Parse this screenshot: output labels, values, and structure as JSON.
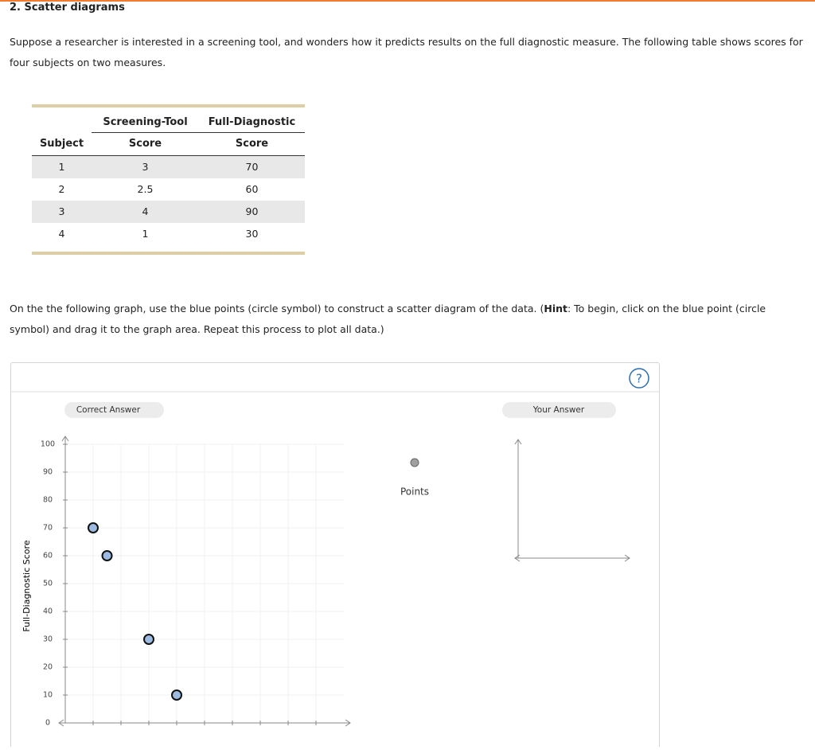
{
  "header": {
    "title": "2. Scatter diagrams"
  },
  "intro": "Suppose a researcher is interested in a screening tool, and wonders how it predicts results on the full diagnostic measure. The following table shows scores for four subjects on two measures.",
  "table": {
    "group_headers": [
      "Screening-Tool",
      "Full-Diagnostic"
    ],
    "columns": [
      "Subject",
      "Score",
      "Score"
    ],
    "rows": [
      [
        1,
        3,
        70
      ],
      [
        2,
        2.5,
        60
      ],
      [
        3,
        4,
        90
      ],
      [
        4,
        1,
        30
      ]
    ]
  },
  "instruction": [
    "On the the following graph, use the blue points (circle symbol) to construct a scatter diagram of the data. (",
    "Hint",
    ": To begin, click on the blue point (circle symbol) and drag it to the graph area. Repeat this process to plot all data.)"
  ],
  "tool": {
    "correct_tab": "Correct Answer",
    "your_tab": "Your Answer",
    "help": "?"
  },
  "chart_data": {
    "type": "scatter",
    "y_label": "Full-Diagnostic Score",
    "x": [
      1,
      1.5,
      3,
      4
    ],
    "series": [
      {
        "name": "Points",
        "color": "#9dbbe0",
        "values": [
          70,
          60,
          30,
          10
        ]
      }
    ],
    "xlim": [
      0,
      10
    ],
    "xticks": [
      1,
      2,
      3,
      4,
      5,
      6,
      7,
      8,
      9
    ],
    "ylim": [
      0,
      100
    ],
    "yticks": [
      0,
      10,
      20,
      30,
      40,
      50,
      60,
      70,
      80,
      90,
      100
    ],
    "grid": true
  }
}
